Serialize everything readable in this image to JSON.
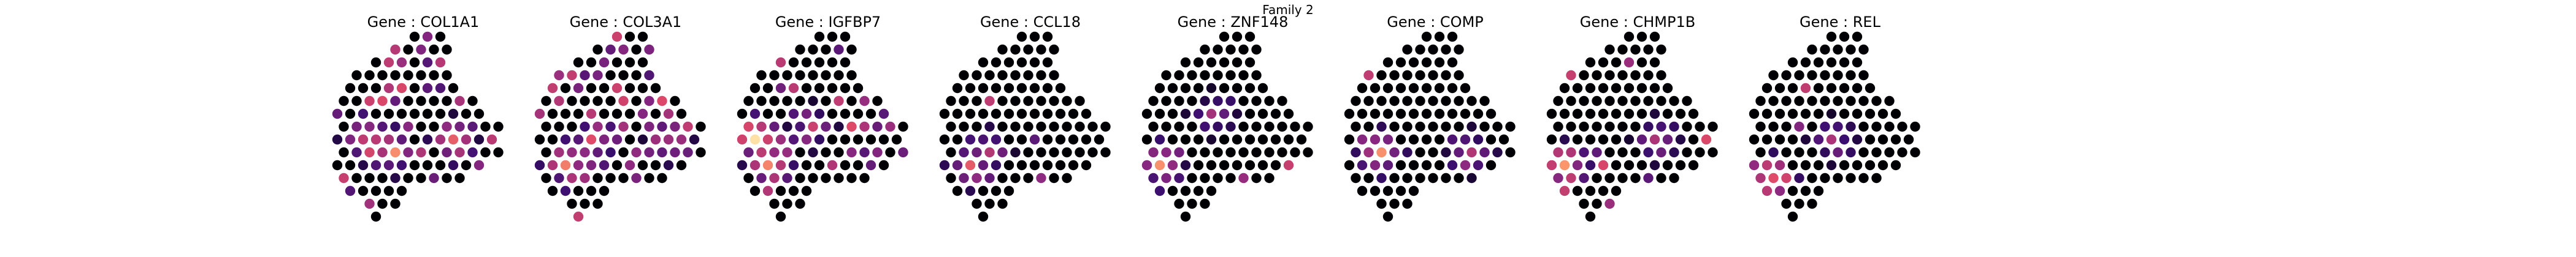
{
  "suptitle": "Family 2",
  "title_prefix": "Gene : ",
  "colormap": {
    "name": "magma",
    "stops": [
      "#000004",
      "#3b0f70",
      "#8c2981",
      "#de4968",
      "#fe9f6d",
      "#fcfdbf"
    ]
  },
  "chart_data": {
    "type": "scatter",
    "description_free": true,
    "grid": false,
    "axes_visible": false,
    "genes": [
      "COL1A1",
      "COL3A1",
      "IGFBP7",
      "CCL18",
      "ZNF148",
      "COMP",
      "CHMP1B",
      "REL"
    ],
    "spot_grid": {
      "columns": 13,
      "rows": 15,
      "row_extents": [
        [
          6,
          8
        ],
        [
          4,
          8
        ],
        [
          3,
          8
        ],
        [
          1,
          8
        ],
        [
          1,
          9
        ],
        [
          0,
          10
        ],
        [
          0,
          11
        ],
        [
          0,
          12
        ],
        [
          0,
          12
        ],
        [
          0,
          12
        ],
        [
          0,
          11
        ],
        [
          0,
          9
        ],
        [
          1,
          5
        ],
        [
          2,
          4
        ],
        [
          3,
          3
        ]
      ]
    },
    "expression": [
      {
        "gene": "COL1A1",
        "seed": 11,
        "base": 0.28,
        "hotspots": [
          {
            "col": 2,
            "row": 8,
            "level": 0.85
          },
          {
            "col": 4,
            "row": 9,
            "level": 0.75
          },
          {
            "col": 9,
            "row": 8,
            "level": 0.7
          }
        ]
      },
      {
        "gene": "COL3A1",
        "seed": 23,
        "base": 0.25,
        "hotspots": [
          {
            "col": 2,
            "row": 10,
            "level": 0.9
          },
          {
            "col": 4,
            "row": 8,
            "level": 0.7
          },
          {
            "col": 10,
            "row": 8,
            "level": 0.65
          }
        ]
      },
      {
        "gene": "IGFBP7",
        "seed": 37,
        "base": 0.24,
        "hotspots": [
          {
            "col": 1,
            "row": 8,
            "level": 0.88
          },
          {
            "col": 2,
            "row": 10,
            "level": 0.8
          },
          {
            "col": 5,
            "row": 7,
            "level": 0.6
          }
        ]
      },
      {
        "gene": "CCL18",
        "seed": 41,
        "base": 0.03,
        "hotspots": [
          {
            "col": 2,
            "row": 10,
            "level": 0.8
          },
          {
            "col": 3,
            "row": 9,
            "level": 0.55
          }
        ]
      },
      {
        "gene": "ZNF148",
        "seed": 53,
        "base": 0.04,
        "hotspots": [
          {
            "col": 1,
            "row": 10,
            "level": 0.8
          },
          {
            "col": 5,
            "row": 6,
            "level": 0.45
          }
        ]
      },
      {
        "gene": "COMP",
        "seed": 67,
        "base": 0.04,
        "hotspots": [
          {
            "col": 2,
            "row": 9,
            "level": 0.85
          },
          {
            "col": 9,
            "row": 9,
            "level": 0.6
          }
        ]
      },
      {
        "gene": "CHMP1B",
        "seed": 71,
        "base": 0.08,
        "hotspots": [
          {
            "col": 1,
            "row": 10,
            "level": 0.8
          },
          {
            "col": 8,
            "row": 8,
            "level": 0.5
          }
        ]
      },
      {
        "gene": "REL",
        "seed": 83,
        "base": 0.03,
        "hotspots": [
          {
            "col": 1,
            "row": 11,
            "level": 0.92
          },
          {
            "col": 6,
            "row": 8,
            "level": 0.5
          }
        ]
      }
    ]
  }
}
